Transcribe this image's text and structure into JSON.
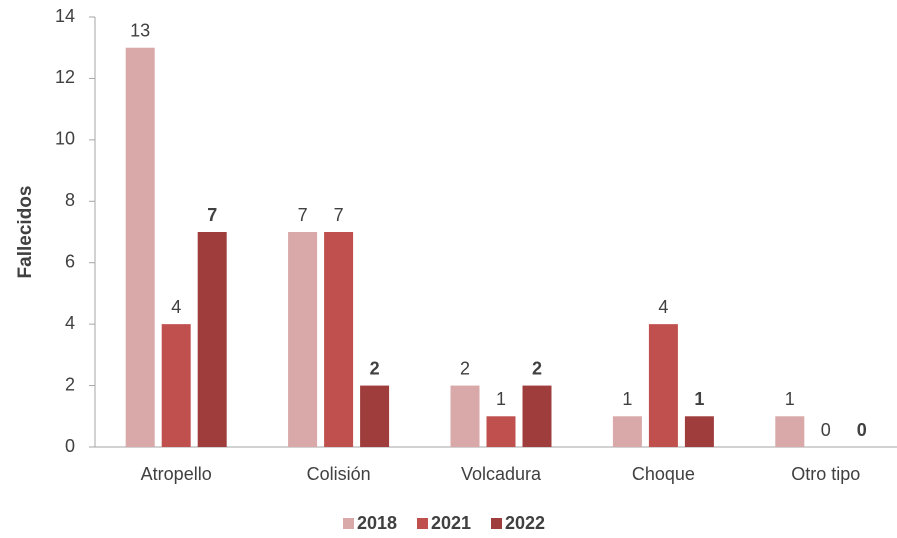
{
  "chart_data": {
    "type": "bar",
    "y_label": "Fallecidos",
    "categories": [
      "Atropello",
      "Colisión",
      "Volcadura",
      "Choque",
      "Otro tipo"
    ],
    "series": [
      {
        "name": "2018",
        "color": "#d9a8a8",
        "values": [
          13,
          7,
          2,
          1,
          1
        ],
        "label_bold": false
      },
      {
        "name": "2021",
        "color": "#c0504d",
        "values": [
          4,
          7,
          1,
          4,
          0
        ],
        "label_bold": false
      },
      {
        "name": "2022",
        "color": "#9f3d3d",
        "values": [
          7,
          2,
          2,
          1,
          0
        ],
        "label_bold": true
      }
    ],
    "ylim": [
      0,
      14
    ],
    "yticks": [
      0,
      2,
      4,
      6,
      8,
      10,
      12,
      14
    ],
    "grid": false,
    "legend": "bottom"
  }
}
